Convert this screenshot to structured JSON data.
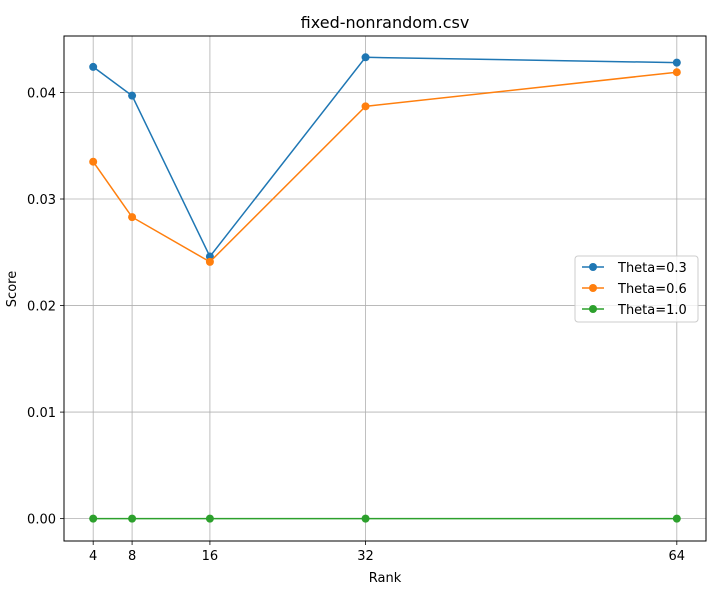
{
  "chart_data": {
    "type": "line",
    "title": "fixed-nonrandom.csv",
    "xlabel": "Rank",
    "ylabel": "Score",
    "x": [
      4,
      8,
      16,
      32,
      64
    ],
    "xticks": [
      "4",
      "8",
      "16",
      "32",
      "64"
    ],
    "yticks": [
      "0.00",
      "0.01",
      "0.02",
      "0.03",
      "0.04"
    ],
    "xlim": [
      1,
      67
    ],
    "ylim": [
      -0.0021,
      0.0453
    ],
    "grid": true,
    "legend_position": "center-right",
    "series": [
      {
        "name": "Theta=0.3",
        "color": "#1f77b4",
        "values": [
          0.0424,
          0.0397,
          0.0246,
          0.0433,
          0.0428
        ]
      },
      {
        "name": "Theta=0.6",
        "color": "#ff7f0e",
        "values": [
          0.0335,
          0.0283,
          0.0241,
          0.0387,
          0.0419
        ]
      },
      {
        "name": "Theta=1.0",
        "color": "#2ca02c",
        "values": [
          0.0,
          0.0,
          0.0,
          0.0,
          0.0
        ]
      }
    ]
  }
}
